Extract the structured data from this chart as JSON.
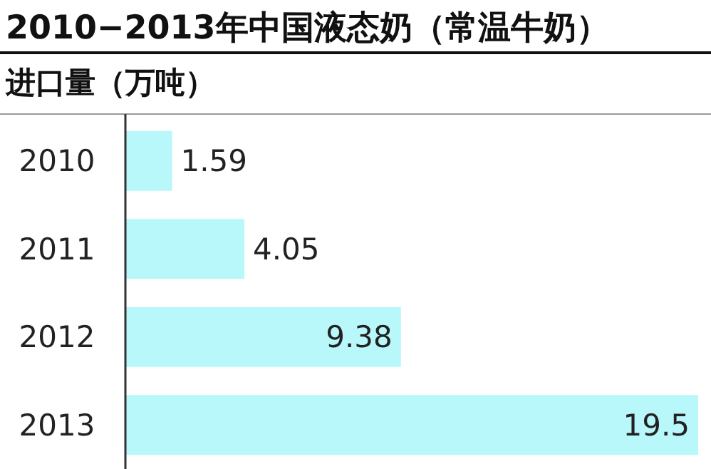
{
  "chart_data": {
    "type": "bar",
    "orientation": "horizontal",
    "title": "2010−2013年中国液态奶（常温牛奶）",
    "subtitle": "进口量（万吨）",
    "categories": [
      "2010",
      "2011",
      "2012",
      "2013"
    ],
    "values": [
      1.59,
      4.05,
      9.38,
      19.5
    ],
    "color": "#b8f7fa",
    "data_labels": true
  }
}
